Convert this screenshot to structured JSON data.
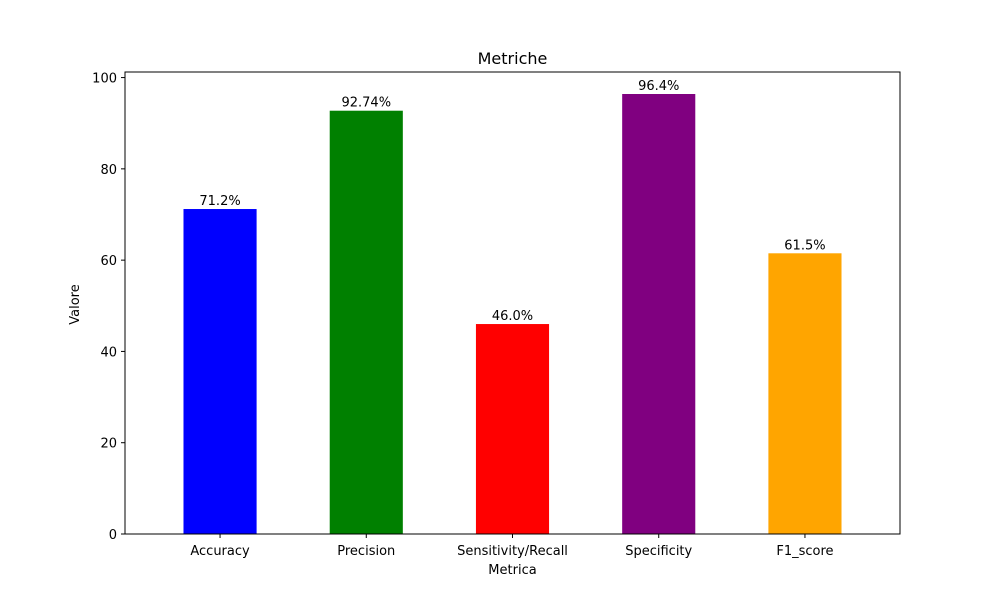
{
  "chart_data": {
    "type": "bar",
    "title": "Metriche",
    "xlabel": "Metrica",
    "ylabel": "Valore",
    "categories": [
      "Accuracy",
      "Precision",
      "Sensitivity/Recall",
      "Specificity",
      "F1_score"
    ],
    "values": [
      71.2,
      92.74,
      46.0,
      96.4,
      61.5
    ],
    "value_labels": [
      "71.2%",
      "92.74%",
      "46.0%",
      "96.4%",
      "61.5%"
    ],
    "colors": [
      "#0000ff",
      "#008000",
      "#ff0000",
      "#800080",
      "#ffa500"
    ],
    "ylim": [
      0,
      101.22
    ],
    "yticks": [
      0,
      20,
      40,
      60,
      80,
      100
    ],
    "grid": false,
    "legend": "none"
  }
}
